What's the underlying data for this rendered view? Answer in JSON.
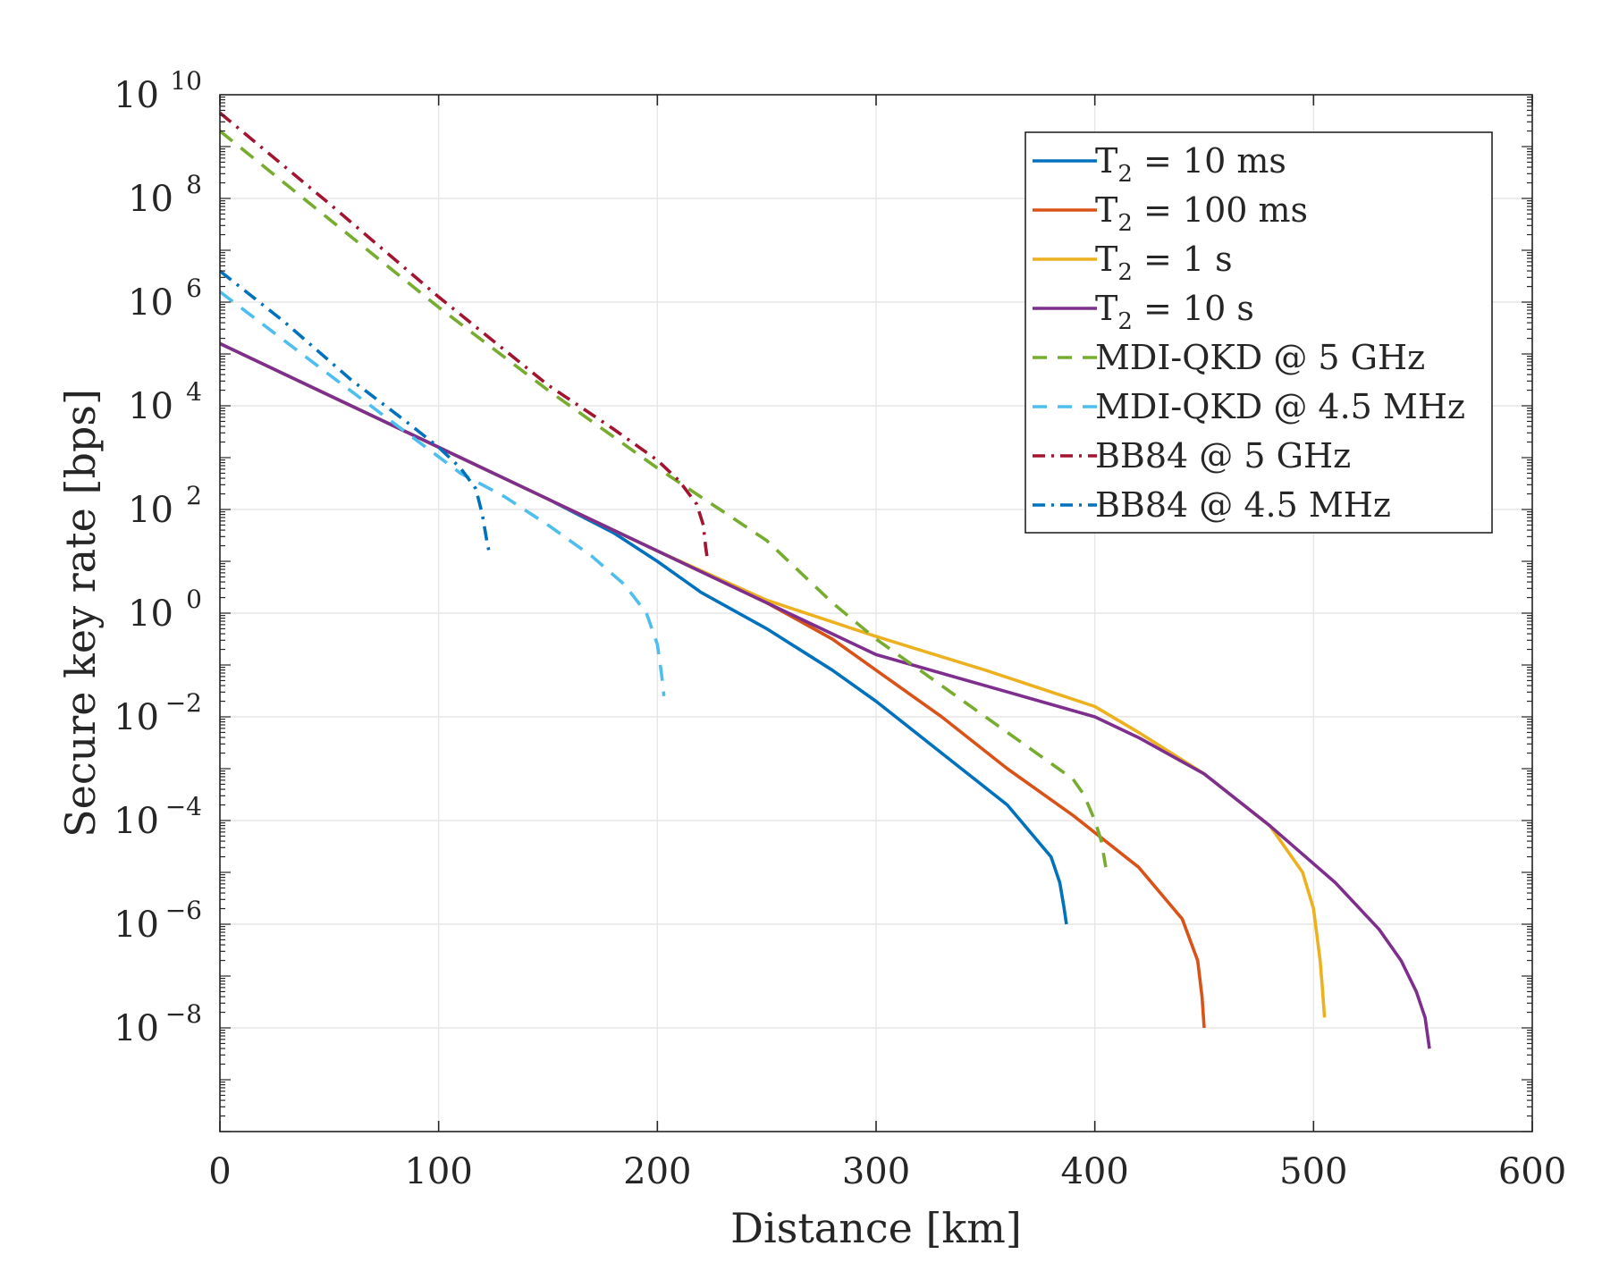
{
  "chart_data": {
    "type": "line",
    "title": "",
    "xlabel": "Distance [km]",
    "ylabel": "Secure key rate [bps]",
    "xlim": [
      0,
      600
    ],
    "ylim_log10": [
      -10,
      10
    ],
    "y_scale": "log",
    "grid": true,
    "legend_position": "top-right",
    "x_ticks": [
      {
        "value": 0,
        "label": "0"
      },
      {
        "value": 100,
        "label": "100"
      },
      {
        "value": 200,
        "label": "200"
      },
      {
        "value": 300,
        "label": "300"
      },
      {
        "value": 400,
        "label": "400"
      },
      {
        "value": 500,
        "label": "500"
      },
      {
        "value": 600,
        "label": "600"
      }
    ],
    "y_ticks": [
      {
        "exp": 10,
        "base": "10",
        "sup": "10"
      },
      {
        "exp": 8,
        "base": "10",
        "sup": "8"
      },
      {
        "exp": 6,
        "base": "10",
        "sup": "6"
      },
      {
        "exp": 4,
        "base": "10",
        "sup": "4"
      },
      {
        "exp": 2,
        "base": "10",
        "sup": "2"
      },
      {
        "exp": 0,
        "base": "10",
        "sup": "0"
      },
      {
        "exp": -2,
        "base": "10",
        "sup": "−2"
      },
      {
        "exp": -4,
        "base": "10",
        "sup": "−4"
      },
      {
        "exp": -6,
        "base": "10",
        "sup": "−6"
      },
      {
        "exp": -8,
        "base": "10",
        "sup": "−8"
      }
    ],
    "series": [
      {
        "name": "T2 = 10 ms",
        "legend": {
          "pre": "T",
          "sub": "2",
          "post": " = 10 ms"
        },
        "color": "#0072BD",
        "dash": "solid",
        "points": [
          [
            0,
            5.2
          ],
          [
            50,
            4.2
          ],
          [
            100,
            3.2
          ],
          [
            150,
            2.2
          ],
          [
            180,
            1.55
          ],
          [
            200,
            1.0
          ],
          [
            220,
            0.4
          ],
          [
            250,
            -0.3
          ],
          [
            280,
            -1.1
          ],
          [
            300,
            -1.7
          ],
          [
            330,
            -2.7
          ],
          [
            360,
            -3.7
          ],
          [
            380,
            -4.7
          ],
          [
            384,
            -5.2
          ],
          [
            386,
            -5.7
          ],
          [
            387,
            -6.0
          ]
        ]
      },
      {
        "name": "T2 = 100 ms",
        "legend": {
          "pre": "T",
          "sub": "2",
          "post": " = 100 ms"
        },
        "color": "#D95319",
        "dash": "solid",
        "points": [
          [
            0,
            5.2
          ],
          [
            100,
            3.2
          ],
          [
            200,
            1.2
          ],
          [
            220,
            0.8
          ],
          [
            250,
            0.2
          ],
          [
            280,
            -0.5
          ],
          [
            300,
            -1.1
          ],
          [
            330,
            -2.0
          ],
          [
            360,
            -3.0
          ],
          [
            390,
            -3.9
          ],
          [
            420,
            -4.9
          ],
          [
            440,
            -5.9
          ],
          [
            447,
            -6.7
          ],
          [
            449,
            -7.4
          ],
          [
            450,
            -8.0
          ]
        ]
      },
      {
        "name": "T2 = 1 s",
        "legend": {
          "pre": "T",
          "sub": "2",
          "post": " = 1 s"
        },
        "color": "#EDB120",
        "dash": "solid",
        "points": [
          [
            0,
            5.2
          ],
          [
            100,
            3.2
          ],
          [
            200,
            1.2
          ],
          [
            250,
            0.25
          ],
          [
            300,
            -0.45
          ],
          [
            350,
            -1.1
          ],
          [
            400,
            -1.8
          ],
          [
            420,
            -2.3
          ],
          [
            450,
            -3.1
          ],
          [
            480,
            -4.1
          ],
          [
            495,
            -5.0
          ],
          [
            500,
            -5.7
          ],
          [
            503,
            -6.7
          ],
          [
            504,
            -7.2
          ],
          [
            505,
            -7.8
          ]
        ]
      },
      {
        "name": "T2 = 10 s",
        "legend": {
          "pre": "T",
          "sub": "2",
          "post": " = 10 s"
        },
        "color": "#7E2F8E",
        "dash": "solid",
        "points": [
          [
            0,
            5.2
          ],
          [
            100,
            3.2
          ],
          [
            200,
            1.2
          ],
          [
            300,
            -0.8
          ],
          [
            350,
            -1.4
          ],
          [
            400,
            -2.0
          ],
          [
            420,
            -2.4
          ],
          [
            450,
            -3.1
          ],
          [
            480,
            -4.1
          ],
          [
            510,
            -5.2
          ],
          [
            530,
            -6.1
          ],
          [
            540,
            -6.7
          ],
          [
            547,
            -7.3
          ],
          [
            551,
            -7.8
          ],
          [
            553,
            -8.4
          ]
        ]
      },
      {
        "name": "MDI-QKD @ 5 GHz",
        "legend": {
          "pre": "MDI-QKD @ 5 GHz",
          "sub": "",
          "post": ""
        },
        "color": "#77AC30",
        "dash": "dashed",
        "points": [
          [
            0,
            9.3
          ],
          [
            50,
            7.6
          ],
          [
            100,
            5.9
          ],
          [
            150,
            4.3
          ],
          [
            200,
            2.8
          ],
          [
            250,
            1.4
          ],
          [
            280,
            0.2
          ],
          [
            300,
            -0.5
          ],
          [
            330,
            -1.4
          ],
          [
            360,
            -2.3
          ],
          [
            390,
            -3.2
          ],
          [
            395,
            -3.5
          ],
          [
            400,
            -4.0
          ],
          [
            403,
            -4.4
          ],
          [
            405,
            -4.9
          ]
        ]
      },
      {
        "name": "MDI-QKD @ 4.5 MHz",
        "legend": {
          "pre": "MDI-QKD @ 4.5 MHz",
          "sub": "",
          "post": ""
        },
        "color": "#4DBEEE",
        "dash": "dashed",
        "points": [
          [
            0,
            6.2
          ],
          [
            50,
            4.6
          ],
          [
            80,
            3.65
          ],
          [
            110,
            2.7
          ],
          [
            130,
            2.25
          ],
          [
            150,
            1.7
          ],
          [
            170,
            1.1
          ],
          [
            185,
            0.55
          ],
          [
            195,
            0.0
          ],
          [
            200,
            -0.6
          ],
          [
            202,
            -1.2
          ],
          [
            203,
            -1.6
          ]
        ]
      },
      {
        "name": "BB84 @ 5 GHz",
        "legend": {
          "pre": "BB84 @ 5 GHz",
          "sub": "",
          "post": ""
        },
        "color": "#A2142F",
        "dash": "dashdot",
        "points": [
          [
            0,
            9.65
          ],
          [
            50,
            7.9
          ],
          [
            100,
            6.1
          ],
          [
            150,
            4.4
          ],
          [
            180,
            3.55
          ],
          [
            200,
            2.95
          ],
          [
            210,
            2.55
          ],
          [
            218,
            2.1
          ],
          [
            221,
            1.7
          ],
          [
            222,
            1.3
          ],
          [
            223,
            1.0
          ]
        ]
      },
      {
        "name": "BB84 @ 4.5 MHz",
        "legend": {
          "pre": "BB84 @ 4.5 MHz",
          "sub": "",
          "post": ""
        },
        "color": "#0072BD",
        "dash": "dashdot",
        "points": [
          [
            0,
            6.6
          ],
          [
            30,
            5.6
          ],
          [
            60,
            4.5
          ],
          [
            85,
            3.7
          ],
          [
            100,
            3.2
          ],
          [
            110,
            2.8
          ],
          [
            117,
            2.4
          ],
          [
            120,
            1.9
          ],
          [
            122,
            1.4
          ],
          [
            123,
            1.2
          ]
        ]
      }
    ]
  }
}
